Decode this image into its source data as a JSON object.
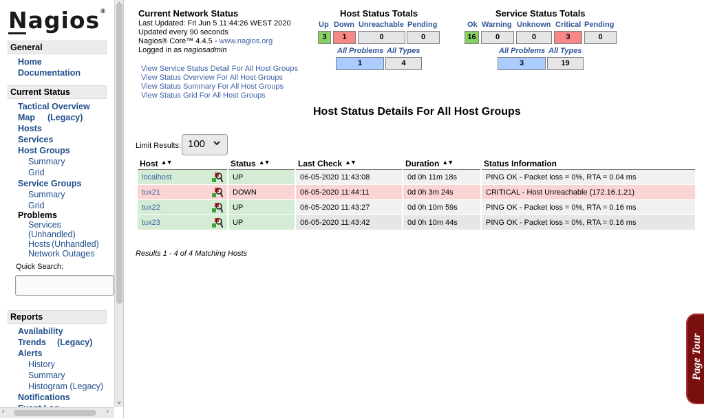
{
  "logo": {
    "text": "Nagios",
    "reg": "®"
  },
  "sidebar": {
    "general": {
      "title": "General",
      "items": [
        "Home",
        "Documentation"
      ]
    },
    "current_status": {
      "title": "Current Status",
      "tactical": "Tactical Overview",
      "map": "Map",
      "map_legacy": "(Legacy)",
      "hosts": "Hosts",
      "services": "Services",
      "host_groups": "Host Groups",
      "hg_summary": "Summary",
      "hg_grid": "Grid",
      "service_groups": "Service Groups",
      "sg_summary": "Summary",
      "sg_grid": "Grid",
      "problems": "Problems",
      "p_services": "Services",
      "p_unhandled_svc": "(Unhandled)",
      "p_hosts": "Hosts",
      "p_unhandled_hosts": "(Unhandled)",
      "p_outages": "Network Outages"
    },
    "quick_search": {
      "label": "Quick Search:",
      "value": ""
    },
    "reports": {
      "title": "Reports",
      "availability": "Availability",
      "trends": "Trends",
      "trends_legacy": "(Legacy)",
      "alerts": "Alerts",
      "history": "History",
      "summary": "Summary",
      "histogram": "Histogram (Legacy)",
      "notifications": "Notifications",
      "event_log": "Event Log"
    }
  },
  "network_status": {
    "title": "Current Network Status",
    "last_updated": "Last Updated: Fri Jun 5 11:44:26 WEST 2020",
    "update_interval": "Updated every 90 seconds",
    "version_prefix": "Nagios® Core™ 4.4.5 - ",
    "version_link": "www.nagios.org",
    "logged_prefix": "Logged in as ",
    "logged_user": "nagiosadmin",
    "links": [
      "View Service Status Detail For All Host Groups",
      "View Status Overview For All Host Groups",
      "View Status Summary For All Host Groups",
      "View Status Grid For All Host Groups"
    ]
  },
  "host_totals": {
    "title": "Host Status Totals",
    "labels": [
      "Up",
      "Down",
      "Unreachable",
      "Pending"
    ],
    "values": [
      "3",
      "1",
      "0",
      "0"
    ],
    "sub_labels": [
      "All Problems",
      "All Types"
    ],
    "sub_values": [
      "1",
      "4"
    ]
  },
  "service_totals": {
    "title": "Service Status Totals",
    "labels": [
      "Ok",
      "Warning",
      "Unknown",
      "Critical",
      "Pending"
    ],
    "values": [
      "16",
      "0",
      "0",
      "3",
      "0"
    ],
    "sub_labels": [
      "All Problems",
      "All Types"
    ],
    "sub_values": [
      "3",
      "19"
    ]
  },
  "details": {
    "title": "Host Status Details For All Host Groups",
    "limit_label": "Limit Results:",
    "limit_value": "100",
    "columns": [
      "Host",
      "Status",
      "Last Check",
      "Duration",
      "Status Information"
    ],
    "rows": [
      {
        "host": "localhost",
        "status": "UP",
        "last_check": "06-05-2020 11:43:08",
        "duration": "0d 0h 11m 18s",
        "info": "PING OK - Packet loss = 0%, RTA = 0.04 ms"
      },
      {
        "host": "tux21",
        "status": "DOWN",
        "last_check": "06-05-2020 11:44:11",
        "duration": "0d 0h 3m 24s",
        "info": "CRITICAL - Host Unreachable (172.16.1.21)"
      },
      {
        "host": "tux22",
        "status": "UP",
        "last_check": "06-05-2020 11:43:27",
        "duration": "0d 0h 10m 59s",
        "info": "PING OK - Packet loss = 0%, RTA = 0.16 ms"
      },
      {
        "host": "tux23",
        "status": "UP",
        "last_check": "06-05-2020 11:43:42",
        "duration": "0d 0h 10m 44s",
        "info": "PING OK - Packet loss = 0%, RTA = 0.16 ms"
      }
    ],
    "results_text": "Results 1 - 4 of 4 Matching Hosts"
  },
  "page_tour": {
    "label": "Page Tour"
  },
  "colors": {
    "up": "#88d066",
    "down": "#f88888",
    "problems": "#aaccff",
    "link": "#3d5fa5",
    "tour": "#7a0f0f"
  },
  "icons": [
    "host-status-magnifier-icon",
    "sort-asc-icon",
    "sort-desc-icon",
    "chevron-down-icon"
  ]
}
